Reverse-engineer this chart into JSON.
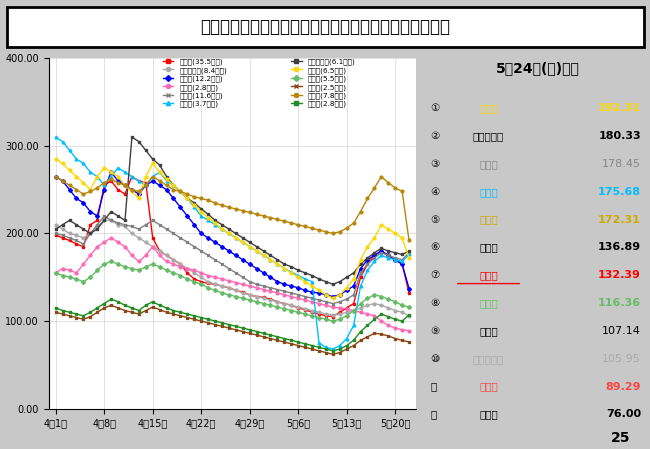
{
  "title": "県内１２市の直近１週間の１０万人当たり陽性者数推移",
  "date_label": "5月24日(火)時点",
  "ylim": [
    0.0,
    400.0
  ],
  "ytick_labels": [
    "0.00",
    "100.00",
    "200.00",
    "300.00",
    "400.00"
  ],
  "ytick_vals": [
    0,
    100,
    200,
    300,
    400
  ],
  "xtick_labels": [
    "4月1日",
    "4月8日",
    "4月15日",
    "4月22日",
    "4月29日",
    "5月6日",
    "5月13日",
    "5月20日"
  ],
  "xtick_positions": [
    0,
    7,
    14,
    21,
    28,
    35,
    42,
    49
  ],
  "page_number": "25",
  "bg_color": "#c8c8c8",
  "cities": [
    {
      "name": "奈良市(35.5万人)",
      "color": "#ff0000",
      "marker": "s",
      "data": [
        198,
        195,
        192,
        188,
        185,
        210,
        215,
        255,
        260,
        250,
        245,
        265,
        260,
        258,
        195,
        180,
        175,
        170,
        165,
        155,
        148,
        145,
        143,
        142,
        140,
        138,
        135,
        133,
        130,
        128,
        127,
        125,
        122,
        120,
        118,
        115,
        113,
        110,
        108,
        106,
        105,
        110,
        115,
        120,
        150,
        165,
        175,
        180,
        175,
        170,
        165,
        132
      ]
    },
    {
      "name": "大和郡山市(8.4万人)",
      "color": "#aaaaaa",
      "marker": "o",
      "data": [
        210,
        205,
        200,
        198,
        195,
        200,
        208,
        215,
        215,
        210,
        208,
        200,
        195,
        190,
        185,
        180,
        175,
        170,
        165,
        160,
        155,
        150,
        145,
        142,
        140,
        138,
        135,
        132,
        130,
        128,
        126,
        124,
        122,
        120,
        118,
        116,
        114,
        112,
        110,
        108,
        107,
        108,
        110,
        112,
        115,
        118,
        120,
        118,
        115,
        112,
        110,
        106
      ]
    },
    {
      "name": "橿原市(12.2万人)",
      "color": "#0000ff",
      "marker": "D",
      "data": [
        265,
        260,
        250,
        240,
        235,
        225,
        220,
        250,
        270,
        260,
        255,
        250,
        245,
        255,
        260,
        255,
        250,
        240,
        230,
        220,
        210,
        200,
        195,
        190,
        185,
        180,
        175,
        170,
        165,
        160,
        155,
        150,
        145,
        142,
        140,
        138,
        135,
        133,
        132,
        130,
        128,
        130,
        135,
        140,
        160,
        170,
        175,
        180,
        175,
        170,
        165,
        137
      ]
    },
    {
      "name": "五條市(2.8万人)",
      "color": "#ff69b4",
      "marker": "o",
      "data": [
        155,
        160,
        158,
        155,
        165,
        175,
        185,
        190,
        195,
        190,
        185,
        175,
        168,
        175,
        185,
        175,
        168,
        165,
        162,
        160,
        158,
        155,
        152,
        150,
        148,
        146,
        144,
        142,
        140,
        138,
        136,
        134,
        132,
        130,
        128,
        126,
        124,
        122,
        120,
        118,
        116,
        115,
        114,
        112,
        110,
        108,
        106,
        100,
        95,
        92,
        90,
        89
      ]
    },
    {
      "name": "生駒市(11.6万人)",
      "color": "#808080",
      "marker": "x",
      "data": [
        200,
        198,
        195,
        192,
        188,
        200,
        210,
        220,
        215,
        212,
        210,
        208,
        205,
        210,
        215,
        210,
        205,
        200,
        195,
        190,
        185,
        180,
        175,
        170,
        165,
        160,
        155,
        150,
        145,
        142,
        140,
        138,
        136,
        134,
        132,
        130,
        128,
        126,
        124,
        122,
        120,
        122,
        125,
        130,
        155,
        165,
        172,
        178,
        175,
        172,
        170,
        178
      ]
    },
    {
      "name": "葛城市(3.7万人)",
      "color": "#00bfff",
      "marker": "^",
      "data": [
        310,
        305,
        295,
        285,
        280,
        270,
        265,
        255,
        265,
        275,
        270,
        265,
        260,
        255,
        265,
        270,
        260,
        255,
        248,
        240,
        230,
        220,
        215,
        210,
        205,
        200,
        195,
        190,
        185,
        180,
        175,
        170,
        165,
        160,
        156,
        152,
        148,
        145,
        75,
        70,
        68,
        72,
        80,
        95,
        140,
        158,
        168,
        175,
        172,
        170,
        168,
        176
      ]
    },
    {
      "name": "大和高田市(6.1万人)",
      "color": "#404040",
      "marker": "s",
      "data": [
        205,
        210,
        215,
        210,
        205,
        200,
        205,
        215,
        225,
        220,
        215,
        310,
        305,
        295,
        285,
        278,
        265,
        255,
        248,
        240,
        235,
        228,
        222,
        215,
        210,
        205,
        200,
        195,
        190,
        185,
        180,
        175,
        170,
        165,
        162,
        158,
        155,
        152,
        148,
        145,
        142,
        145,
        150,
        155,
        165,
        172,
        178,
        183,
        180,
        178,
        176,
        180
      ]
    },
    {
      "name": "天理市(6.5万人)",
      "color": "#ffd700",
      "marker": "o",
      "data": [
        285,
        280,
        272,
        265,
        258,
        250,
        265,
        275,
        270,
        265,
        255,
        248,
        240,
        265,
        280,
        270,
        262,
        255,
        248,
        240,
        232,
        225,
        218,
        212,
        205,
        200,
        195,
        190,
        185,
        180,
        175,
        170,
        165,
        160,
        155,
        150,
        145,
        140,
        135,
        130,
        126,
        130,
        138,
        148,
        170,
        185,
        195,
        210,
        205,
        200,
        195,
        172
      ]
    },
    {
      "name": "桜井市(5.5万人)",
      "color": "#66bb66",
      "marker": "D",
      "data": [
        155,
        152,
        150,
        148,
        145,
        150,
        158,
        165,
        168,
        165,
        162,
        160,
        158,
        162,
        165,
        162,
        158,
        155,
        152,
        148,
        145,
        142,
        138,
        135,
        132,
        130,
        128,
        126,
        124,
        122,
        120,
        118,
        116,
        114,
        112,
        110,
        108,
        106,
        104,
        102,
        100,
        102,
        106,
        112,
        120,
        126,
        130,
        128,
        125,
        122,
        118,
        116
      ]
    },
    {
      "name": "御所市(2.5万人)",
      "color": "#8b4513",
      "marker": "x",
      "data": [
        110,
        108,
        106,
        104,
        102,
        105,
        110,
        115,
        118,
        115,
        112,
        110,
        108,
        112,
        116,
        113,
        110,
        108,
        106,
        104,
        102,
        100,
        98,
        96,
        94,
        92,
        90,
        88,
        86,
        84,
        82,
        80,
        78,
        76,
        74,
        72,
        70,
        68,
        66,
        64,
        62,
        64,
        68,
        72,
        78,
        82,
        86,
        85,
        83,
        80,
        78,
        76
      ]
    },
    {
      "name": "香芝市(7.8万人)",
      "color": "#b8860b",
      "marker": "o",
      "data": [
        265,
        260,
        255,
        250,
        245,
        248,
        252,
        258,
        262,
        258,
        255,
        250,
        248,
        255,
        265,
        260,
        255,
        250,
        248,
        245,
        242,
        240,
        238,
        235,
        232,
        230,
        228,
        226,
        224,
        222,
        220,
        218,
        216,
        214,
        212,
        210,
        208,
        206,
        204,
        202,
        200,
        202,
        206,
        212,
        225,
        240,
        252,
        265,
        258,
        252,
        248,
        192
      ]
    },
    {
      "name": "宇陀市(2.8万人)",
      "color": "#228b22",
      "marker": "s",
      "data": [
        115,
        112,
        110,
        108,
        106,
        110,
        115,
        120,
        125,
        122,
        118,
        115,
        112,
        118,
        122,
        118,
        115,
        112,
        110,
        108,
        106,
        104,
        102,
        100,
        98,
        96,
        94,
        92,
        90,
        88,
        86,
        84,
        82,
        80,
        78,
        76,
        74,
        72,
        70,
        68,
        66,
        68,
        72,
        78,
        88,
        95,
        102,
        108,
        105,
        102,
        100,
        107
      ]
    }
  ],
  "legend_col1": [
    {
      "name": "奈良市(35.5万人)",
      "color": "#ff0000",
      "marker": "s"
    },
    {
      "name": "大和郡山市(8.4万人)",
      "color": "#aaaaaa",
      "marker": "o"
    },
    {
      "name": "橿原市(12.2万人)",
      "color": "#0000ff",
      "marker": "D"
    },
    {
      "name": "五條市(2.8万人)",
      "color": "#ff69b4",
      "marker": "o"
    },
    {
      "name": "生駒市(11.6万人)",
      "color": "#808080",
      "marker": "x"
    },
    {
      "name": "葛城市(3.7万人)",
      "color": "#00bfff",
      "marker": "^"
    }
  ],
  "legend_col2": [
    {
      "name": "大和高田市(6.1万人)",
      "color": "#404040",
      "marker": "s"
    },
    {
      "name": "天理市(6.5万人)",
      "color": "#ffd700",
      "marker": "o"
    },
    {
      "name": "桜井市(5.5万人)",
      "color": "#66bb66",
      "marker": "D"
    },
    {
      "name": "御所市(2.5万人)",
      "color": "#8b4513",
      "marker": "x"
    },
    {
      "name": "香芝市(7.8万人)",
      "color": "#b8860b",
      "marker": "o"
    },
    {
      "name": "宇陀市(2.8万人)",
      "color": "#228b22",
      "marker": "s"
    }
  ],
  "ranking": [
    {
      "rank": 1,
      "name": "香芝市",
      "value": 192.31,
      "name_color": "#ffd700",
      "val_color": "#ffd700",
      "bold": true,
      "underline": false
    },
    {
      "rank": 2,
      "name": "大和高田市",
      "value": 180.33,
      "name_color": "#000000",
      "val_color": "#000000",
      "bold": true,
      "underline": false
    },
    {
      "rank": 3,
      "name": "生駒市",
      "value": 178.45,
      "name_color": "#888888",
      "val_color": "#888888",
      "bold": false,
      "underline": false
    },
    {
      "rank": 4,
      "name": "葛城市",
      "value": 175.68,
      "name_color": "#00bfff",
      "val_color": "#00bfff",
      "bold": true,
      "underline": false
    },
    {
      "rank": 5,
      "name": "天理市",
      "value": 172.31,
      "name_color": "#ccaa00",
      "val_color": "#ccaa00",
      "bold": true,
      "underline": false
    },
    {
      "rank": 6,
      "name": "橿原市",
      "value": 136.89,
      "name_color": "#000000",
      "val_color": "#000000",
      "bold": true,
      "underline": false
    },
    {
      "rank": 7,
      "name": "奈良市",
      "value": 132.39,
      "name_color": "#ff0000",
      "val_color": "#ff0000",
      "bold": true,
      "underline": true
    },
    {
      "rank": 8,
      "name": "桜井市",
      "value": 116.36,
      "name_color": "#66bb66",
      "val_color": "#66bb66",
      "bold": true,
      "underline": false
    },
    {
      "rank": 9,
      "name": "宇陀市",
      "value": 107.14,
      "name_color": "#000000",
      "val_color": "#000000",
      "bold": false,
      "underline": false
    },
    {
      "rank": 10,
      "name": "大和郡山市",
      "value": 105.95,
      "name_color": "#aaaaaa",
      "val_color": "#aaaaaa",
      "bold": false,
      "underline": false
    },
    {
      "rank": 11,
      "name": "五條市",
      "value": 89.29,
      "name_color": "#ff4444",
      "val_color": "#ff4444",
      "bold": true,
      "underline": false
    },
    {
      "rank": 12,
      "name": "御所市",
      "value": 76.0,
      "name_color": "#000000",
      "val_color": "#000000",
      "bold": true,
      "underline": false
    }
  ]
}
